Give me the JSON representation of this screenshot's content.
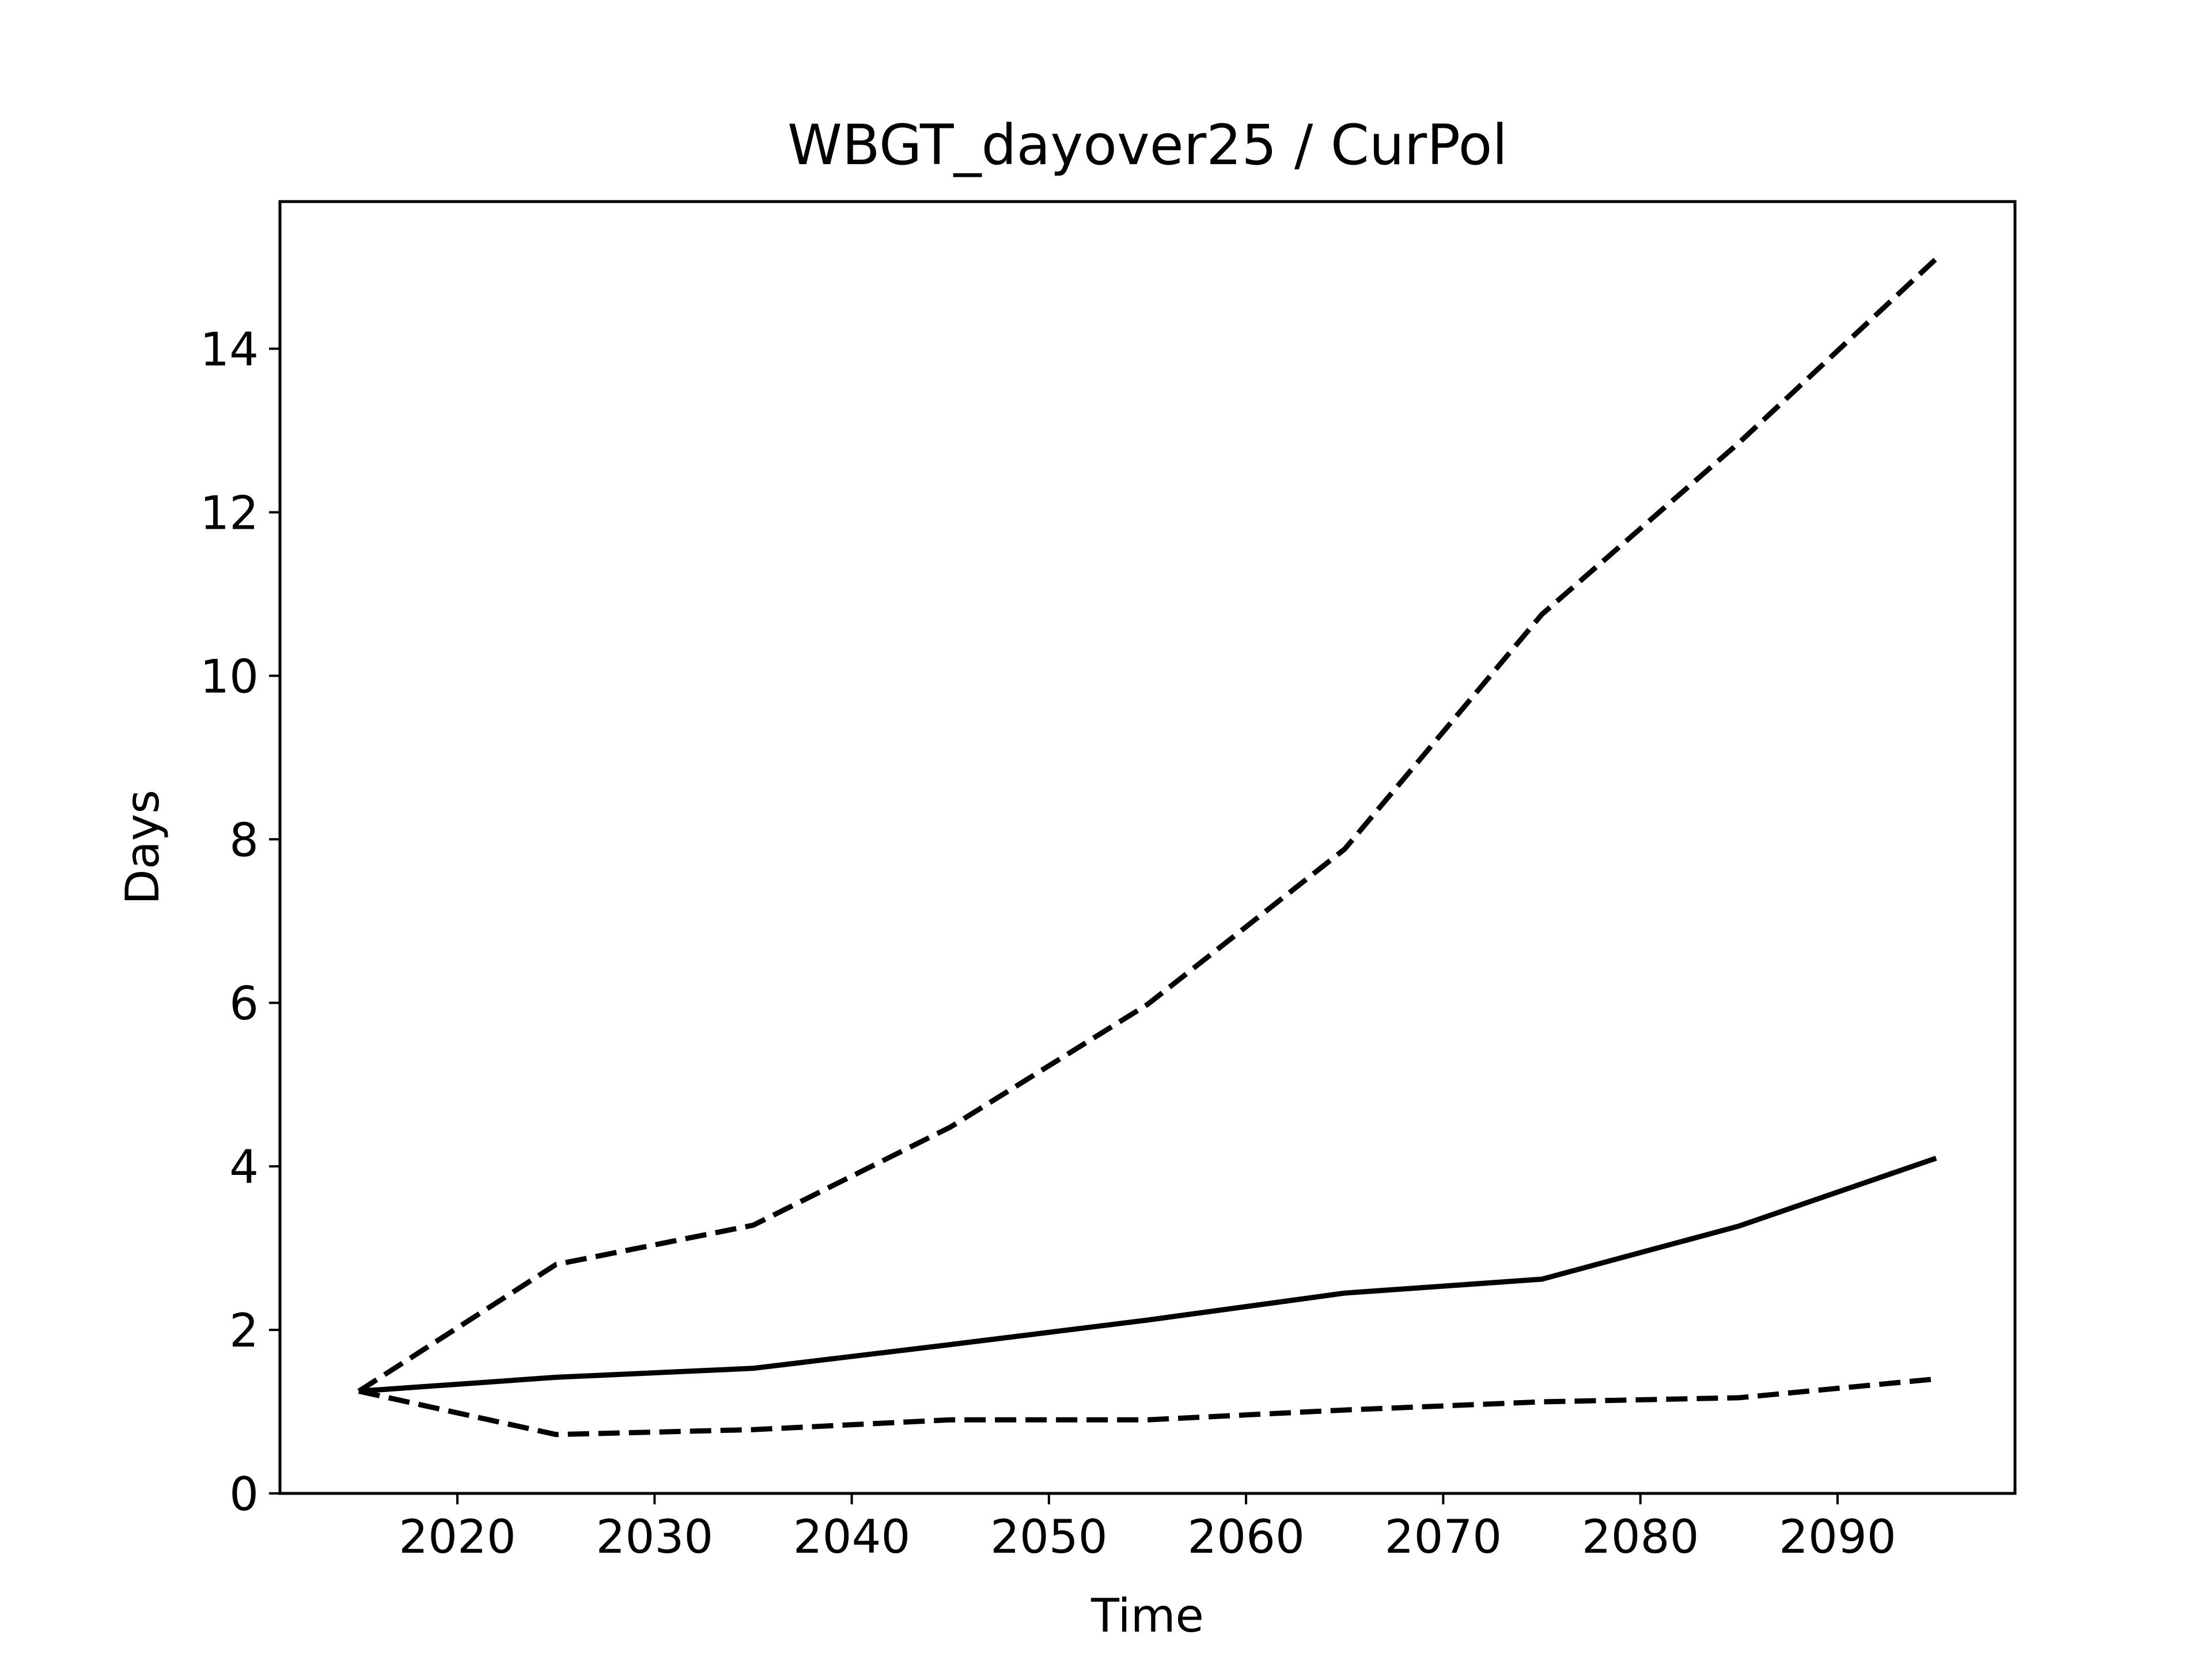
{
  "chart_data": {
    "type": "line",
    "title": "WBGT_dayover25 / CurPol",
    "xlabel": "Time",
    "ylabel": "Days",
    "xlim": [
      2011,
      2099
    ],
    "ylim": [
      0,
      15.8
    ],
    "xticks": [
      2020,
      2030,
      2040,
      2050,
      2060,
      2070,
      2080,
      2090
    ],
    "yticks": [
      0,
      2,
      4,
      6,
      8,
      10,
      12,
      14
    ],
    "grid": false,
    "legend": "none",
    "x": [
      2015,
      2025,
      2035,
      2045,
      2055,
      2065,
      2075,
      2085,
      2095
    ],
    "series": [
      {
        "style": "dashed",
        "color": "#000000",
        "values": [
          1.25,
          2.8,
          3.28,
          4.48,
          5.98,
          7.88,
          10.75,
          12.85,
          15.1
        ]
      },
      {
        "style": "solid",
        "color": "#000000",
        "values": [
          1.25,
          1.42,
          1.53,
          1.82,
          2.12,
          2.45,
          2.62,
          3.27,
          4.1
        ]
      },
      {
        "style": "dashed",
        "color": "#000000",
        "values": [
          1.25,
          0.72,
          0.78,
          0.9,
          0.9,
          1.02,
          1.12,
          1.17,
          1.4
        ]
      }
    ]
  }
}
